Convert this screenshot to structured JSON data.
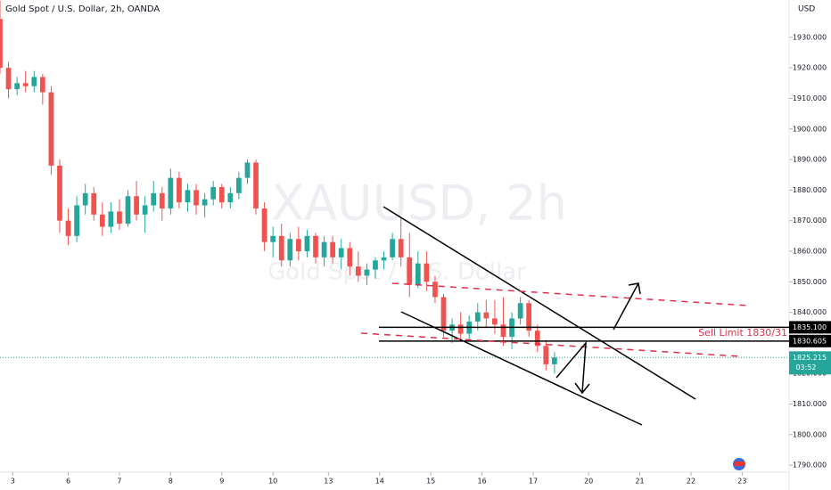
{
  "chart_data": {
    "type": "candlestick",
    "title": "Gold Spot / U.S. Dollar, 2h, OANDA",
    "watermark": "XAUUSD, 2h",
    "watermark_subtitle": "Gold Spot / U.S. Dollar",
    "y_unit": "USD",
    "up_color": "#26a69a",
    "down_color": "#ef5350",
    "x": [
      0,
      2,
      4,
      6,
      8,
      10,
      12,
      14,
      16,
      18,
      20,
      22,
      24,
      26,
      28,
      30,
      32,
      34,
      36,
      38,
      40,
      42,
      44,
      46,
      48,
      50,
      52,
      54,
      56,
      58,
      60,
      62,
      64,
      66,
      68,
      70,
      72,
      74,
      76,
      78,
      80,
      82,
      84,
      86,
      88,
      90,
      92,
      94,
      96,
      98,
      100,
      102,
      104,
      106,
      108,
      110,
      112,
      114,
      116,
      118,
      120,
      122,
      124,
      126,
      128,
      130
    ],
    "open": [
      1936,
      1920,
      1913,
      1915,
      1914,
      1917,
      1912,
      1888,
      1870,
      1865,
      1875,
      1879,
      1872,
      1868,
      1873,
      1869,
      1878,
      1872,
      1875,
      1879,
      1874,
      1884,
      1876,
      1880,
      1875,
      1877,
      1881,
      1876,
      1879,
      1884,
      1889,
      1874,
      1863,
      1865,
      1857,
      1864,
      1860,
      1865,
      1858,
      1863,
      1858,
      1861,
      1855,
      1852,
      1854,
      1857,
      1858,
      1864,
      1858,
      1849,
      1856,
      1850,
      1845,
      1834,
      1836,
      1833,
      1837,
      1840,
      1838,
      1836,
      1832,
      1838,
      1843,
      1834,
      1829,
      1823
    ],
    "high": [
      1942,
      1922,
      1917,
      1919,
      1919,
      1918,
      1914,
      1890,
      1874,
      1878,
      1882,
      1881,
      1876,
      1876,
      1877,
      1880,
      1883,
      1878,
      1883,
      1881,
      1887,
      1886,
      1882,
      1882,
      1879,
      1883,
      1882,
      1881,
      1886,
      1890,
      1890,
      1876,
      1868,
      1869,
      1866,
      1868,
      1867,
      1866,
      1865,
      1865,
      1864,
      1863,
      1860,
      1856,
      1858,
      1860,
      1866,
      1871,
      1866,
      1860,
      1860,
      1852,
      1846,
      1838,
      1840,
      1839,
      1843,
      1844,
      1844,
      1845,
      1840,
      1845,
      1844,
      1836,
      1831,
      1827
    ],
    "low": [
      1918,
      1910,
      1911,
      1912,
      1912,
      1908,
      1885,
      1866,
      1862,
      1863,
      1872,
      1870,
      1865,
      1866,
      1867,
      1868,
      1870,
      1866,
      1873,
      1870,
      1872,
      1874,
      1873,
      1872,
      1871,
      1875,
      1874,
      1874,
      1877,
      1882,
      1872,
      1860,
      1858,
      1855,
      1855,
      1857,
      1858,
      1856,
      1855,
      1856,
      1854,
      1852,
      1850,
      1849,
      1851,
      1854,
      1857,
      1855,
      1845,
      1848,
      1847,
      1843,
      1832,
      1830,
      1831,
      1831,
      1834,
      1835,
      1833,
      1829,
      1828,
      1836,
      1832,
      1827,
      1821,
      1820
    ],
    "close": [
      1920,
      1913,
      1915,
      1914,
      1917,
      1912,
      1888,
      1870,
      1865,
      1875,
      1879,
      1872,
      1868,
      1873,
      1869,
      1878,
      1872,
      1875,
      1879,
      1874,
      1884,
      1876,
      1880,
      1875,
      1877,
      1881,
      1876,
      1879,
      1884,
      1889,
      1874,
      1863,
      1865,
      1857,
      1864,
      1860,
      1865,
      1858,
      1863,
      1858,
      1861,
      1855,
      1852,
      1854,
      1857,
      1858,
      1864,
      1858,
      1849,
      1856,
      1850,
      1845,
      1834,
      1836,
      1833,
      1837,
      1840,
      1838,
      1836,
      1832,
      1838,
      1843,
      1834,
      1829,
      1823,
      1825.215
    ],
    "xlim": [
      0,
      185
    ],
    "xticks": [
      {
        "value": 3,
        "label": "3"
      },
      {
        "value": 16,
        "label": "6"
      },
      {
        "value": 28,
        "label": "7"
      },
      {
        "value": 40,
        "label": "8"
      },
      {
        "value": 52,
        "label": "9"
      },
      {
        "value": 64,
        "label": "10"
      },
      {
        "value": 77,
        "label": "13"
      },
      {
        "value": 89,
        "label": "14"
      },
      {
        "value": 101,
        "label": "15"
      },
      {
        "value": 113,
        "label": "16"
      },
      {
        "value": 125,
        "label": "17"
      },
      {
        "value": 138,
        "label": "20"
      },
      {
        "value": 150,
        "label": "21"
      },
      {
        "value": 162,
        "label": "22"
      },
      {
        "value": 174,
        "label": "23"
      }
    ],
    "ylim": [
      1787.7,
      1942.2
    ],
    "yticks": [
      {
        "value": 1790,
        "label": "1790.000"
      },
      {
        "value": 1800,
        "label": "1800.000"
      },
      {
        "value": 1810,
        "label": "1810.000"
      },
      {
        "value": 1820,
        "label": "1820.000"
      },
      {
        "value": 1830,
        "label": "1830.000"
      },
      {
        "value": 1840,
        "label": "1840.000"
      },
      {
        "value": 1850,
        "label": "1850.000"
      },
      {
        "value": 1860,
        "label": "1860.000"
      },
      {
        "value": 1870,
        "label": "1870.000"
      },
      {
        "value": 1880,
        "label": "1880.000"
      },
      {
        "value": 1890,
        "label": "1890.000"
      },
      {
        "value": 1900,
        "label": "1900.000"
      },
      {
        "value": 1910,
        "label": "1910.000"
      },
      {
        "value": 1920,
        "label": "1920.000"
      },
      {
        "value": 1930,
        "label": "1930.000"
      }
    ],
    "levels": [
      {
        "value": 1835.1,
        "label": "1835.100"
      },
      {
        "value": 1830.605,
        "label": "1830.605"
      }
    ],
    "annotation": "Sell Limit 1830/31",
    "current_price": {
      "value": 1825.215,
      "label": "1825.215"
    },
    "countdown": "03:52"
  }
}
